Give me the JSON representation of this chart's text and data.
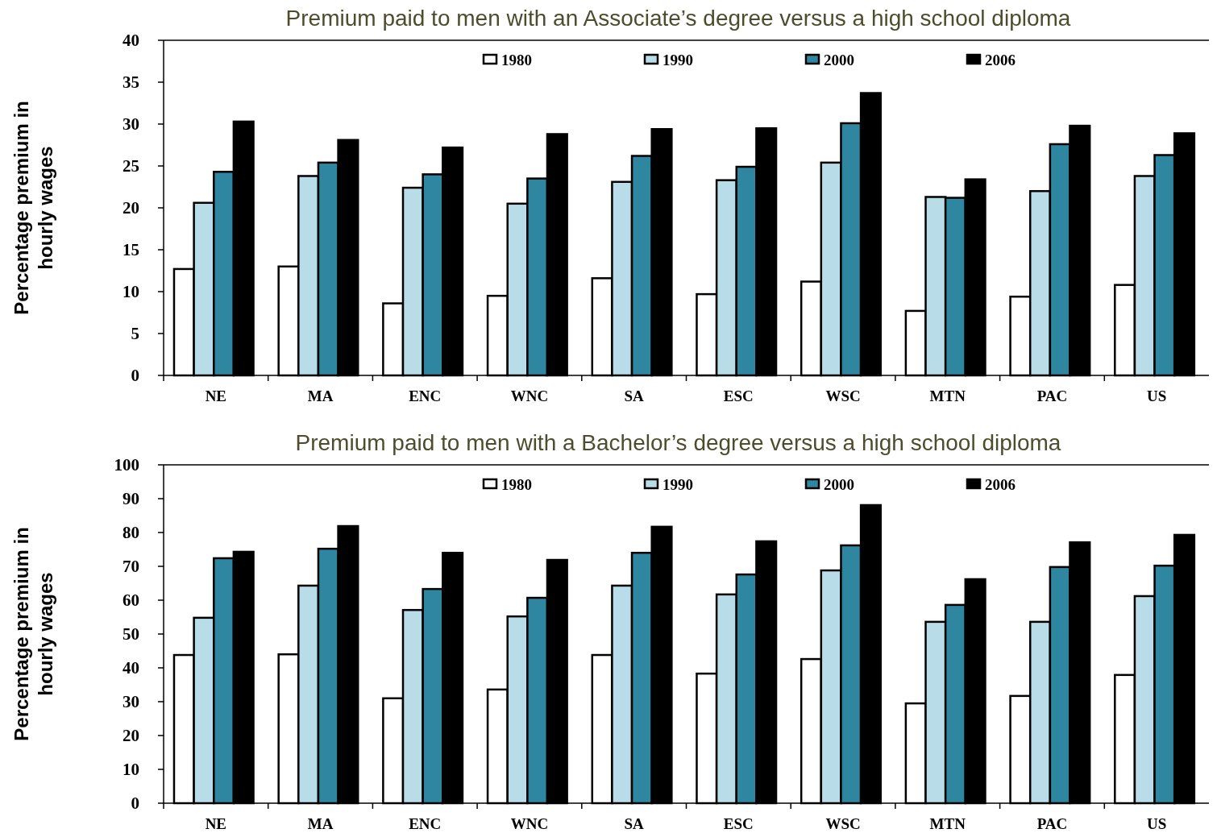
{
  "chart_data": [
    {
      "type": "bar",
      "title": "Premium paid to men with an Associate’s degree versus a high school diploma",
      "ylabel": "Percentage premium in hourly wages",
      "categories": [
        "NE",
        "MA",
        "ENC",
        "WNC",
        "SA",
        "ESC",
        "WSC",
        "MTN",
        "PAC",
        "US"
      ],
      "ylim": [
        0,
        40
      ],
      "yticks": [
        0,
        5,
        10,
        15,
        20,
        25,
        30,
        35,
        40
      ],
      "grid": false,
      "legend": "top",
      "series": [
        {
          "name": "1980",
          "color": "#ffffff",
          "values": [
            12.7,
            13.0,
            8.6,
            9.5,
            11.6,
            9.7,
            11.2,
            7.7,
            9.4,
            10.8
          ]
        },
        {
          "name": "1990",
          "color": "#b8dde8",
          "values": [
            20.6,
            23.8,
            22.4,
            20.5,
            23.1,
            23.3,
            25.4,
            21.3,
            22.0,
            23.8
          ]
        },
        {
          "name": "2000",
          "color": "#2e86a0",
          "values": [
            24.3,
            25.4,
            24.0,
            23.5,
            26.2,
            24.9,
            30.1,
            21.2,
            27.6,
            26.3
          ]
        },
        {
          "name": "2006",
          "color": "#000000",
          "values": [
            30.3,
            28.1,
            27.2,
            28.8,
            29.4,
            29.5,
            33.7,
            23.4,
            29.8,
            28.9
          ]
        }
      ]
    },
    {
      "type": "bar",
      "title": "Premium paid to men with a Bachelor’s degree versus a high school diploma",
      "ylabel": "Percentage premium in hourly wages",
      "categories": [
        "NE",
        "MA",
        "ENC",
        "WNC",
        "SA",
        "ESC",
        "WSC",
        "MTN",
        "PAC",
        "US"
      ],
      "ylim": [
        0,
        100
      ],
      "yticks": [
        0,
        10,
        20,
        30,
        40,
        50,
        60,
        70,
        80,
        90,
        100
      ],
      "grid": false,
      "legend": "top",
      "series": [
        {
          "name": "1980",
          "color": "#ffffff",
          "values": [
            43.8,
            44.0,
            31.0,
            33.6,
            43.8,
            38.3,
            42.6,
            29.5,
            31.7,
            37.9
          ]
        },
        {
          "name": "1990",
          "color": "#b8dde8",
          "values": [
            54.8,
            64.3,
            57.1,
            55.2,
            64.3,
            61.7,
            68.8,
            53.6,
            53.6,
            61.2
          ]
        },
        {
          "name": "2000",
          "color": "#2e86a0",
          "values": [
            72.4,
            75.2,
            63.3,
            60.7,
            74.0,
            67.6,
            76.2,
            58.6,
            69.8,
            70.2
          ]
        },
        {
          "name": "2006",
          "color": "#000000",
          "values": [
            74.3,
            81.9,
            74.0,
            71.9,
            81.7,
            77.4,
            88.1,
            66.2,
            77.1,
            79.3
          ]
        }
      ]
    }
  ]
}
